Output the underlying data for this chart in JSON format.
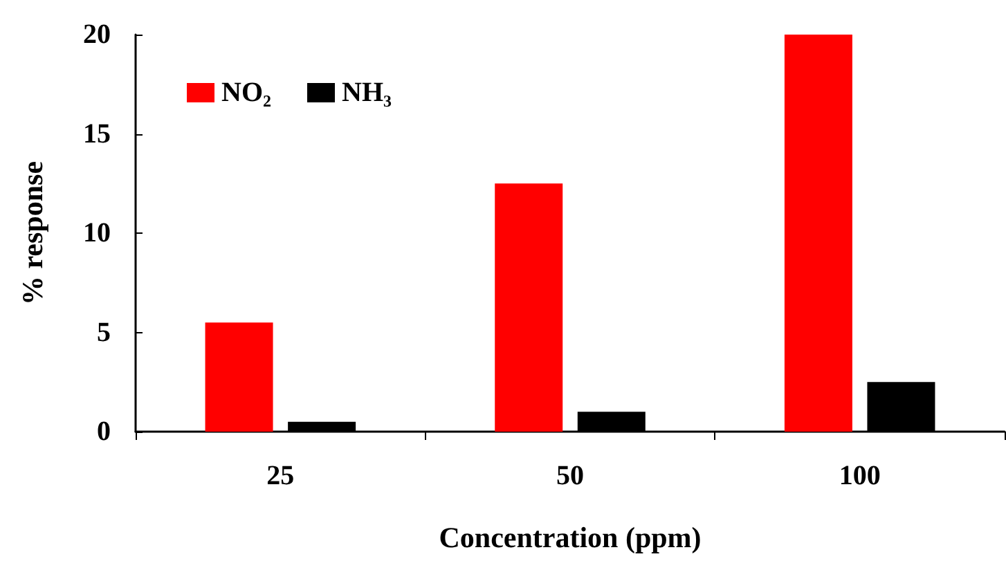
{
  "chart_data": {
    "type": "bar",
    "xlabel": "Concentration (ppm)",
    "ylabel": "% response",
    "categories": [
      "25",
      "50",
      "100"
    ],
    "series": [
      {
        "name": "NO₂",
        "color": "#ff0000",
        "values": [
          5.5,
          12.5,
          20
        ]
      },
      {
        "name": "NH₃",
        "color": "#000000",
        "values": [
          0.5,
          1.0,
          2.5
        ]
      }
    ],
    "ylim": [
      0,
      20
    ],
    "yticks": [
      0,
      5,
      10,
      15,
      20
    ],
    "grid": false,
    "legend": "top left"
  }
}
